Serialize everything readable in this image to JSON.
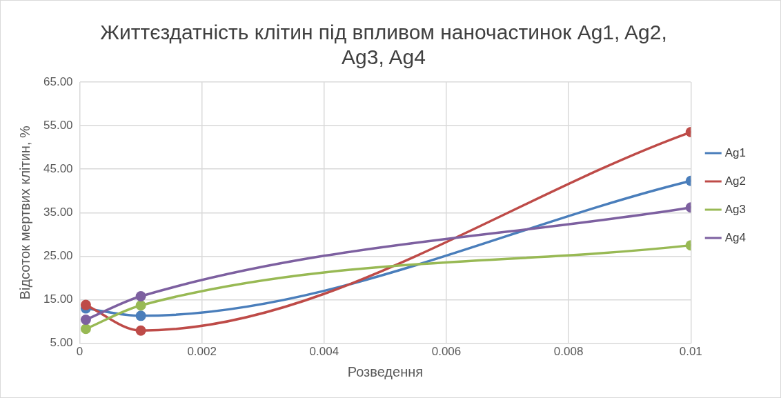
{
  "chart_data": {
    "type": "line",
    "title": "Життєздатність клітин під впливом наночастинок Ag1, Ag2, Ag3, Ag4",
    "xlabel": "Розведення",
    "ylabel": "Відсоток мертвих клітин, %",
    "x": [
      0.0001,
      0.001,
      0.01
    ],
    "series": [
      {
        "name": "Ag1",
        "color": "#4a7ebb",
        "values": [
          13.0,
          11.3,
          42.3
        ]
      },
      {
        "name": "Ag2",
        "color": "#be4b48",
        "values": [
          13.8,
          7.9,
          53.5
        ]
      },
      {
        "name": "Ag3",
        "color": "#98b954",
        "values": [
          8.3,
          13.7,
          27.5
        ]
      },
      {
        "name": "Ag4",
        "color": "#7d60a0",
        "values": [
          10.4,
          15.8,
          36.2
        ]
      }
    ],
    "xlim": [
      0,
      0.01
    ],
    "xticks": [
      0,
      0.002,
      0.004,
      0.006,
      0.008,
      0.01
    ],
    "ylim": [
      5,
      65
    ],
    "yticks": [
      {
        "value": 5,
        "label": "5.00"
      },
      {
        "value": 15,
        "label": "15.00"
      },
      {
        "value": 25,
        "label": "25.00"
      },
      {
        "value": 35,
        "label": "35.00"
      },
      {
        "value": 45,
        "label": "45.00"
      },
      {
        "value": 55,
        "label": "55.00"
      },
      {
        "value": 65,
        "label": "65.00"
      }
    ],
    "grid": true,
    "legend": "right",
    "marker": "circle",
    "line_style": "solid"
  }
}
